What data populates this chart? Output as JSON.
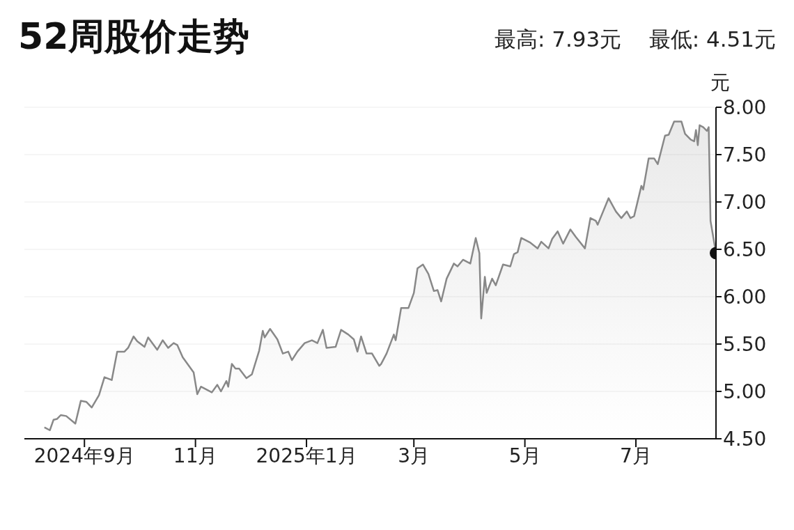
{
  "chart_data": {
    "type": "area",
    "title": "52周股价走势",
    "subtitle": "最高: 7.93元    最低: 4.51元",
    "ylabel": "元",
    "xlim": [
      "2024-07-30",
      "2025-08-14"
    ],
    "xticks": [
      {
        "value": "2024-09-01",
        "label": "2024年9月"
      },
      {
        "value": "2024-11-01",
        "label": "11月"
      },
      {
        "value": "2025-01-01",
        "label": "2025年1月"
      },
      {
        "value": "2025-03-01",
        "label": "3月"
      },
      {
        "value": "2025-05-01",
        "label": "5月"
      },
      {
        "value": "2025-07-01",
        "label": "7月"
      }
    ],
    "ylim": [
      4.5,
      8.0
    ],
    "yticks": [
      {
        "value": 4.5,
        "label": "4.50"
      },
      {
        "value": 5.0,
        "label": "5.00"
      },
      {
        "value": 5.5,
        "label": "5.50"
      },
      {
        "value": 6.0,
        "label": "6.00"
      },
      {
        "value": 6.5,
        "label": "6.50"
      },
      {
        "value": 7.0,
        "label": "7.00"
      },
      {
        "value": 7.5,
        "label": "7.50"
      },
      {
        "value": 8.0,
        "label": "8.00"
      }
    ],
    "grid": "y",
    "series": [
      {
        "color": "#888888",
        "x": [
          "2024-08-10",
          "2024-08-13",
          "2024-08-15",
          "2024-08-17",
          "2024-08-19",
          "2024-08-22",
          "2024-08-27",
          "2024-08-30",
          "2024-09-02",
          "2024-09-05",
          "2024-09-09",
          "2024-09-12",
          "2024-09-16",
          "2024-09-19",
          "2024-09-23",
          "2024-09-25",
          "2024-09-28",
          "2024-09-30",
          "2024-10-04",
          "2024-10-06",
          "2024-10-11",
          "2024-10-14",
          "2024-10-17",
          "2024-10-20",
          "2024-10-22",
          "2024-10-25",
          "2024-10-31",
          "2024-11-02",
          "2024-11-04",
          "2024-11-08",
          "2024-11-10",
          "2024-11-13",
          "2024-11-15",
          "2024-11-18",
          "2024-11-19",
          "2024-11-21",
          "2024-11-23",
          "2024-11-25",
          "2024-11-29",
          "2024-12-02",
          "2024-12-06",
          "2024-12-08",
          "2024-12-09",
          "2024-12-12",
          "2024-12-16",
          "2024-12-19",
          "2024-12-22",
          "2024-12-24",
          "2024-12-27",
          "2024-12-31",
          "2025-01-04",
          "2025-01-07",
          "2025-01-10",
          "2025-01-12",
          "2025-01-17",
          "2025-01-20",
          "2025-01-24",
          "2025-01-27",
          "2025-01-29",
          "2025-01-31",
          "2025-02-03",
          "2025-02-06",
          "2025-02-10",
          "2025-02-11",
          "2025-02-14",
          "2025-02-18",
          "2025-02-19",
          "2025-02-22",
          "2025-02-26",
          "2025-03-01",
          "2025-03-03",
          "2025-03-06",
          "2025-03-09",
          "2025-03-12",
          "2025-03-14",
          "2025-03-16",
          "2025-03-19",
          "2025-03-23",
          "2025-03-25",
          "2025-03-28",
          "2025-04-01",
          "2025-04-04",
          "2025-04-06",
          "2025-04-07",
          "2025-04-09",
          "2025-04-10",
          "2025-04-13",
          "2025-04-15",
          "2025-04-19",
          "2025-04-23",
          "2025-04-25",
          "2025-04-27",
          "2025-04-29",
          "2025-05-04",
          "2025-05-08",
          "2025-05-10",
          "2025-05-14",
          "2025-05-16",
          "2025-05-19",
          "2025-05-22",
          "2025-05-26",
          "2025-05-29",
          "2025-06-03",
          "2025-06-06",
          "2025-06-09",
          "2025-06-10",
          "2025-06-16",
          "2025-06-20",
          "2025-06-23",
          "2025-06-26",
          "2025-06-28",
          "2025-06-30",
          "2025-07-04",
          "2025-07-05",
          "2025-07-08",
          "2025-07-11",
          "2025-07-13",
          "2025-07-17",
          "2025-07-19",
          "2025-07-22",
          "2025-07-26",
          "2025-07-28",
          "2025-07-31",
          "2025-08-02",
          "2025-08-03",
          "2025-08-04",
          "2025-08-05",
          "2025-08-07",
          "2025-08-09",
          "2025-08-10",
          "2025-08-11",
          "2025-08-14"
        ],
        "values": [
          4.62,
          4.59,
          4.7,
          4.71,
          4.75,
          4.74,
          4.66,
          4.9,
          4.89,
          4.83,
          4.96,
          5.15,
          5.12,
          5.42,
          5.42,
          5.46,
          5.58,
          5.53,
          5.47,
          5.57,
          5.44,
          5.54,
          5.46,
          5.51,
          5.49,
          5.36,
          5.2,
          4.97,
          5.05,
          5.01,
          4.99,
          5.07,
          5.0,
          5.11,
          5.05,
          5.29,
          5.24,
          5.24,
          5.14,
          5.18,
          5.43,
          5.64,
          5.57,
          5.66,
          5.55,
          5.4,
          5.42,
          5.33,
          5.42,
          5.51,
          5.54,
          5.51,
          5.65,
          5.46,
          5.47,
          5.65,
          5.6,
          5.55,
          5.42,
          5.58,
          5.4,
          5.4,
          5.27,
          5.29,
          5.4,
          5.6,
          5.54,
          5.88,
          5.88,
          6.04,
          6.3,
          6.34,
          6.24,
          6.06,
          6.07,
          5.95,
          6.19,
          6.35,
          6.32,
          6.39,
          6.35,
          6.62,
          6.46,
          5.77,
          6.21,
          6.04,
          6.19,
          6.12,
          6.34,
          6.32,
          6.45,
          6.47,
          6.62,
          6.57,
          6.51,
          6.58,
          6.51,
          6.61,
          6.69,
          6.56,
          6.71,
          6.63,
          6.51,
          6.83,
          6.8,
          6.76,
          7.04,
          6.9,
          6.83,
          6.9,
          6.83,
          6.85,
          7.17,
          7.13,
          7.46,
          7.46,
          7.4,
          7.7,
          7.71,
          7.85,
          7.85,
          7.72,
          7.66,
          7.64,
          7.76,
          7.6,
          7.81,
          7.79,
          7.75,
          7.79,
          6.8,
          6.46
        ]
      },
      {
        "type": "scatter",
        "color": "#111111",
        "marker": "circle",
        "x": [
          "2025-08-14"
        ],
        "values": [
          6.46
        ]
      }
    ]
  }
}
